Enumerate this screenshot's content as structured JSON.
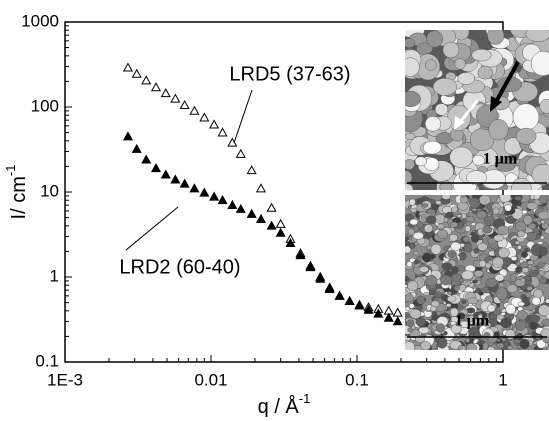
{
  "chart_data": {
    "type": "scatter",
    "x_label": "q / Å",
    "x_label_sup": "-1",
    "y_label": "I/ cm",
    "y_label_sup": "-1",
    "log_x": true,
    "log_y": true,
    "xlim": [
      0.001,
      1
    ],
    "ylim": [
      0.1,
      1000
    ],
    "xticks": [
      {
        "value": 0.001,
        "label": "1E-3"
      },
      0.01,
      0.1,
      1
    ],
    "yticks": [
      0.1,
      1,
      10,
      100,
      1000
    ],
    "annotations": [
      "LRD5 (37-63)",
      "LRD2 (60-40)"
    ],
    "series": [
      {
        "name": "LRD5 (37-63)",
        "color": "#000000",
        "marker_filled": false,
        "x": [
          0.0027,
          0.0031,
          0.0036,
          0.0042,
          0.0049,
          0.0057,
          0.0066,
          0.0077,
          0.009,
          0.0105,
          0.012,
          0.014,
          0.016,
          0.019,
          0.022,
          0.026,
          0.03,
          0.035,
          0.041,
          0.048,
          0.056,
          0.065,
          0.076,
          0.089,
          0.104,
          0.12,
          0.14,
          0.165,
          0.19
        ],
        "values": [
          290,
          245,
          205,
          170,
          145,
          125,
          105,
          90,
          75,
          62,
          50,
          38,
          28,
          18,
          11,
          6.5,
          4.2,
          2.8,
          1.9,
          1.35,
          1.0,
          0.75,
          0.6,
          0.52,
          0.47,
          0.44,
          0.42,
          0.4,
          0.38
        ]
      },
      {
        "name": "LRD2 (60-40)",
        "color": "#000000",
        "marker_filled": true,
        "x": [
          0.0027,
          0.0031,
          0.0036,
          0.0042,
          0.0049,
          0.0057,
          0.0066,
          0.0077,
          0.009,
          0.0105,
          0.012,
          0.014,
          0.016,
          0.019,
          0.022,
          0.026,
          0.03,
          0.035,
          0.041,
          0.048,
          0.056,
          0.065,
          0.076,
          0.089,
          0.104,
          0.12,
          0.14,
          0.165,
          0.19
        ],
        "values": [
          45,
          32,
          24,
          19,
          16,
          14,
          12.5,
          11,
          9.8,
          8.8,
          8,
          7,
          6.3,
          5.5,
          4.8,
          4,
          3.3,
          2.5,
          1.8,
          1.3,
          0.95,
          0.72,
          0.6,
          0.52,
          0.46,
          0.41,
          0.37,
          0.33,
          0.3
        ]
      }
    ]
  },
  "insets": [
    {
      "scale_label": "1 μm"
    },
    {
      "scale_label": "1 μm"
    }
  ]
}
